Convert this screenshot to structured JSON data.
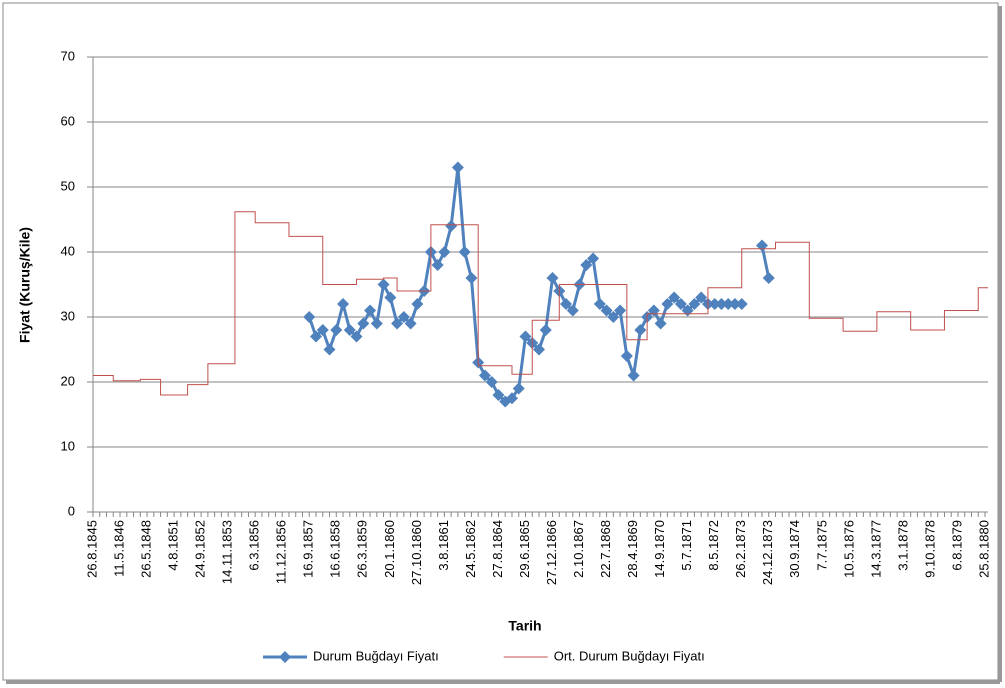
{
  "chart_data": {
    "type": "line",
    "x_label": "Tarih",
    "y_label": "Fiyat (Kuruş/Kile)",
    "categories": [
      "26.8.1845",
      null,
      null,
      null,
      "11.5.1846",
      null,
      null,
      null,
      "26.5.1848",
      null,
      null,
      null,
      "4.8.1851",
      null,
      null,
      null,
      "24.9.1852",
      null,
      null,
      null,
      "14.11.1853",
      null,
      null,
      null,
      "6.3.1856",
      null,
      null,
      null,
      "11.12.1856",
      null,
      null,
      null,
      "16.9.1857",
      null,
      null,
      null,
      "16.6.1858",
      null,
      null,
      null,
      "26.3.1859",
      null,
      null,
      null,
      "20.1.1860",
      null,
      null,
      null,
      "27.10.1860",
      null,
      null,
      null,
      "3.8.1861",
      null,
      null,
      null,
      "24.5.1862",
      null,
      null,
      null,
      "27.8.1864",
      null,
      null,
      null,
      "29.6.1865",
      null,
      null,
      null,
      "27.12.1866",
      null,
      null,
      null,
      "2.10.1867",
      null,
      null,
      null,
      "22.7.1868",
      null,
      null,
      null,
      "28.4.1869",
      null,
      null,
      null,
      "14.9.1870",
      null,
      null,
      null,
      "5.7.1871",
      null,
      null,
      null,
      "8.5.1872",
      null,
      null,
      null,
      "26.2.1873",
      null,
      null,
      null,
      "24.12.1873",
      null,
      null,
      null,
      "30.9.1874",
      null,
      null,
      null,
      "7.7.1875",
      null,
      null,
      null,
      "10.5.1876",
      null,
      null,
      null,
      "14.3.1877",
      null,
      null,
      null,
      "3.1.1878",
      null,
      null,
      null,
      "9.10.1878",
      null,
      null,
      null,
      "6.8.1879",
      null,
      null,
      null,
      "25.8.1880"
    ],
    "series": [
      {
        "name": "Durum Buğdayı Fiyatı",
        "color": "#4f81bd",
        "marker": "diamond",
        "line_style": "straight",
        "values": [
          null,
          null,
          null,
          null,
          null,
          null,
          null,
          null,
          null,
          null,
          null,
          null,
          null,
          null,
          null,
          null,
          null,
          null,
          null,
          null,
          null,
          null,
          null,
          null,
          null,
          null,
          null,
          null,
          null,
          null,
          null,
          null,
          30,
          27,
          28,
          25,
          28,
          32,
          28,
          27,
          29,
          31,
          29,
          35,
          33,
          29,
          30,
          29,
          32,
          34,
          40,
          38,
          40,
          44,
          53,
          40,
          36,
          23,
          21,
          20,
          18,
          17,
          17.5,
          19,
          27,
          26,
          25,
          28,
          36,
          34,
          32,
          31,
          35,
          38,
          39,
          32,
          31,
          30,
          31,
          24,
          21,
          28,
          30,
          31,
          29,
          32,
          33,
          32,
          31,
          32,
          33,
          32,
          32,
          32,
          32,
          32,
          32,
          null,
          null,
          41,
          36,
          null,
          null,
          null,
          null,
          null,
          null,
          null,
          null,
          null,
          null,
          null,
          null,
          null,
          null,
          null,
          null,
          null,
          null,
          null,
          null,
          null,
          null,
          null,
          null,
          null,
          null,
          null,
          null,
          null,
          null,
          null,
          null
        ]
      },
      {
        "name": "Ort. Durum Buğdayı Fiyatı",
        "color": "#c0504d",
        "marker": "none",
        "line_style": "step",
        "values": [
          21,
          21,
          21,
          20.2,
          20.2,
          20.2,
          20.2,
          20.4,
          20.4,
          20.4,
          18,
          18,
          18,
          18,
          19.6,
          19.6,
          19.6,
          22.8,
          22.8,
          22.8,
          22.8,
          46.2,
          46.2,
          46.2,
          44.5,
          44.5,
          44.5,
          44.5,
          44.5,
          42.4,
          42.4,
          42.4,
          42.4,
          42.4,
          35,
          35,
          35,
          35,
          35,
          35.8,
          35.8,
          35.8,
          35.8,
          36,
          36,
          34,
          34,
          34,
          34,
          34,
          44.2,
          44.2,
          44.2,
          44.2,
          44.2,
          44.2,
          44.2,
          22.5,
          22.5,
          22.5,
          22.5,
          22.5,
          21.2,
          21.2,
          21.2,
          29.5,
          29.5,
          29.5,
          29.5,
          35,
          35,
          35,
          35,
          35,
          35,
          35,
          35,
          35,
          35,
          26.5,
          26.5,
          26.5,
          30.5,
          30.5,
          30.5,
          30.5,
          30.5,
          30.5,
          30.5,
          30.5,
          30.5,
          34.5,
          34.5,
          34.5,
          34.5,
          34.5,
          40.5,
          40.5,
          40.5,
          40.5,
          40.5,
          41.5,
          41.5,
          41.5,
          41.5,
          41.5,
          29.8,
          29.8,
          29.8,
          29.8,
          29.8,
          27.8,
          27.8,
          27.8,
          27.8,
          27.8,
          30.8,
          30.8,
          30.8,
          30.8,
          30.8,
          28,
          28,
          28,
          28,
          28,
          31,
          31,
          31,
          31,
          31,
          34.5,
          34.5
        ]
      }
    ],
    "ylim": [
      0,
      70
    ],
    "yticks": [
      0,
      10,
      20,
      30,
      40,
      50,
      60,
      70
    ],
    "grid": true,
    "legend": "bottom"
  }
}
